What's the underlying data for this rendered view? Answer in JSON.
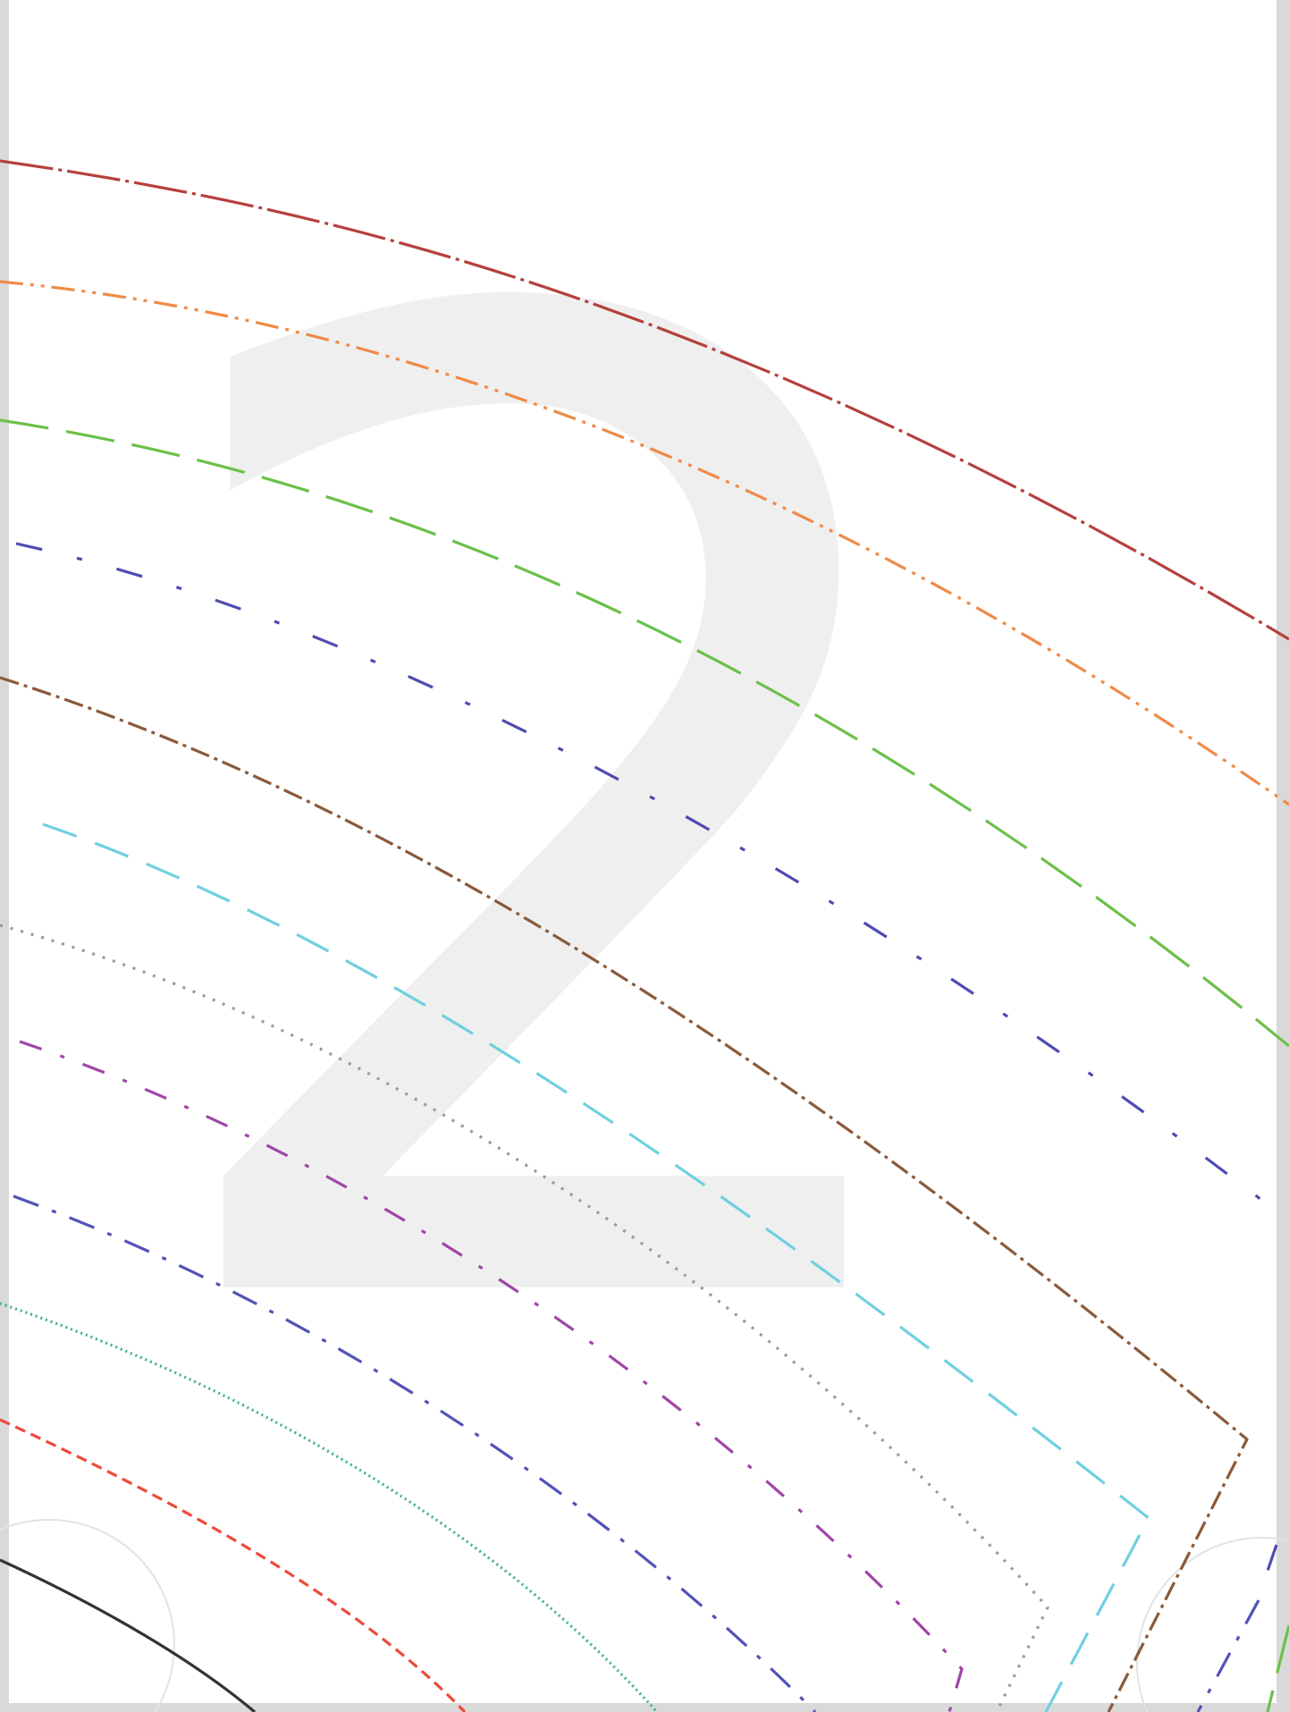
{
  "watermark": {
    "numeral": "2",
    "color": "#efefef"
  },
  "frame": {
    "border_color": "#d9d9d9",
    "guide_circle_color": "#e3e3e3"
  },
  "contour_lines": [
    {
      "name": "contour-line-1",
      "color": "#b5403d",
      "style": "dash-dot-long"
    },
    {
      "name": "contour-line-2",
      "color": "#ef8a47",
      "style": "dash-dot-dot"
    },
    {
      "name": "contour-line-3",
      "color": "#6cc04a",
      "style": "long-dash"
    },
    {
      "name": "contour-line-4",
      "color": "#4e4cb2",
      "style": "dash-dot-sparse"
    },
    {
      "name": "contour-line-5",
      "color": "#8a5a3a",
      "style": "dash-dot-dense"
    },
    {
      "name": "contour-line-6",
      "color": "#6fd0e0",
      "style": "dash"
    },
    {
      "name": "contour-line-7",
      "color": "#9a9a9a",
      "style": "dot"
    },
    {
      "name": "contour-line-8",
      "color": "#a046a8",
      "style": "dash-dot"
    },
    {
      "name": "contour-line-9",
      "color": "#5252b8",
      "style": "dash-dot-medium"
    },
    {
      "name": "contour-line-10",
      "color": "#3bb08a",
      "style": "fine-dot"
    },
    {
      "name": "contour-line-11",
      "color": "#ef4a3a",
      "style": "short-dash"
    },
    {
      "name": "contour-line-12",
      "color": "#333333",
      "style": "solid"
    }
  ]
}
